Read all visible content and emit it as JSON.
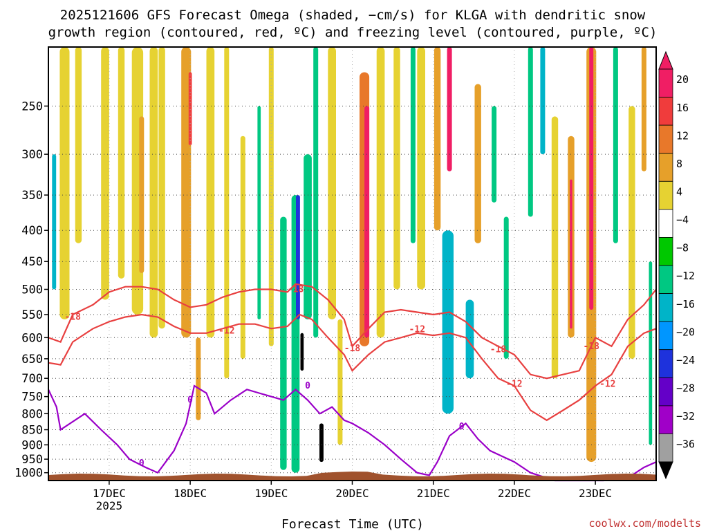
{
  "chart_data": {
    "type": "heatmap",
    "title_line1": "2025121606 GFS Forecast Omega (shaded, −cm/s) for KLGA with dendritic snow",
    "title_line2": "growth region (contoured, red, ºC) and freezing level (contoured, purple, ºC)",
    "xlabel": "Forecast Time (UTC)",
    "credit": "coolwx.com/modelts",
    "x_range": [
      16.25,
      23.75
    ],
    "x_ticks": [
      {
        "value": 17,
        "label": "17DEC",
        "sublabel": "2025"
      },
      {
        "value": 18,
        "label": "18DEC",
        "sublabel": ""
      },
      {
        "value": 19,
        "label": "19DEC",
        "sublabel": ""
      },
      {
        "value": 20,
        "label": "20DEC",
        "sublabel": ""
      },
      {
        "value": 21,
        "label": "21DEC",
        "sublabel": ""
      },
      {
        "value": 22,
        "label": "22DEC",
        "sublabel": ""
      },
      {
        "value": 23,
        "label": "23DEC",
        "sublabel": ""
      }
    ],
    "y_range": [
      1030,
      200
    ],
    "y_ticks": [
      1000,
      950,
      900,
      850,
      800,
      750,
      700,
      650,
      600,
      550,
      500,
      450,
      400,
      350,
      300,
      250
    ],
    "colorbar": {
      "labels": [
        "20",
        "16",
        "12",
        "8",
        "4",
        "−4",
        "−8",
        "−12",
        "−16",
        "−20",
        "−24",
        "−28",
        "−32",
        "−36"
      ],
      "colors": [
        "#f01e64",
        "#f03c3c",
        "#e8782a",
        "#e6a02a",
        "#e6d232",
        "#ffffff",
        "#00c800",
        "#00c882",
        "#00b4c8",
        "#0096ff",
        "#1e32dc",
        "#6400c8",
        "#a000c8",
        "#a0a0a0"
      ],
      "top_color": "#f01e64",
      "bottom_color": "#000000"
    },
    "shading_blobs": [
      {
        "t": 16.32,
        "dt": 0.05,
        "p0": 300,
        "p1": 500,
        "level": -12
      },
      {
        "t": 16.45,
        "dt": 0.12,
        "p0": 200,
        "p1": 560,
        "level": 6
      },
      {
        "t": 16.62,
        "dt": 0.08,
        "p0": 200,
        "p1": 420,
        "level": 4
      },
      {
        "t": 16.95,
        "dt": 0.1,
        "p0": 200,
        "p1": 520,
        "level": 5
      },
      {
        "t": 17.15,
        "dt": 0.08,
        "p0": 200,
        "p1": 480,
        "level": 4
      },
      {
        "t": 17.35,
        "dt": 0.14,
        "p0": 200,
        "p1": 550,
        "level": 6
      },
      {
        "t": 17.4,
        "dt": 0.06,
        "p0": 260,
        "p1": 470,
        "level": 11
      },
      {
        "t": 17.55,
        "dt": 0.1,
        "p0": 200,
        "p1": 600,
        "level": 7
      },
      {
        "t": 17.65,
        "dt": 0.08,
        "p0": 200,
        "p1": 580,
        "level": 5
      },
      {
        "t": 17.95,
        "dt": 0.12,
        "p0": 200,
        "p1": 600,
        "level": 9
      },
      {
        "t": 18.0,
        "dt": 0.04,
        "p0": 220,
        "p1": 290,
        "level": 17
      },
      {
        "t": 18.1,
        "dt": 0.06,
        "p0": 600,
        "p1": 820,
        "level": 8
      },
      {
        "t": 18.25,
        "dt": 0.1,
        "p0": 200,
        "p1": 600,
        "level": 4
      },
      {
        "t": 18.45,
        "dt": 0.06,
        "p0": 200,
        "p1": 700,
        "level": 5
      },
      {
        "t": 18.65,
        "dt": 0.06,
        "p0": 280,
        "p1": 650,
        "level": 5
      },
      {
        "t": 18.85,
        "dt": 0.04,
        "p0": 250,
        "p1": 560,
        "level": -8
      },
      {
        "t": 19.0,
        "dt": 0.06,
        "p0": 200,
        "p1": 620,
        "level": 5
      },
      {
        "t": 19.15,
        "dt": 0.08,
        "p0": 380,
        "p1": 990,
        "level": -8
      },
      {
        "t": 19.3,
        "dt": 0.1,
        "p0": 350,
        "p1": 1000,
        "level": -10
      },
      {
        "t": 19.33,
        "dt": 0.05,
        "p0": 350,
        "p1": 560,
        "level": -22
      },
      {
        "t": 19.38,
        "dt": 0.04,
        "p0": 590,
        "p1": 680,
        "level": -40
      },
      {
        "t": 19.45,
        "dt": 0.1,
        "p0": 300,
        "p1": 560,
        "level": -10
      },
      {
        "t": 19.55,
        "dt": 0.06,
        "p0": 200,
        "p1": 600,
        "level": -8
      },
      {
        "t": 19.62,
        "dt": 0.05,
        "p0": 830,
        "p1": 960,
        "level": -40
      },
      {
        "t": 19.75,
        "dt": 0.1,
        "p0": 200,
        "p1": 560,
        "level": 6
      },
      {
        "t": 19.85,
        "dt": 0.06,
        "p0": 560,
        "p1": 900,
        "level": 5
      },
      {
        "t": 20.15,
        "dt": 0.12,
        "p0": 220,
        "p1": 620,
        "level": 12
      },
      {
        "t": 20.18,
        "dt": 0.06,
        "p0": 250,
        "p1": 600,
        "level": 21
      },
      {
        "t": 20.35,
        "dt": 0.1,
        "p0": 200,
        "p1": 600,
        "level": 5
      },
      {
        "t": 20.55,
        "dt": 0.08,
        "p0": 200,
        "p1": 500,
        "level": 5
      },
      {
        "t": 20.75,
        "dt": 0.06,
        "p0": 200,
        "p1": 420,
        "level": -8
      },
      {
        "t": 20.85,
        "dt": 0.1,
        "p0": 200,
        "p1": 500,
        "level": 6
      },
      {
        "t": 21.05,
        "dt": 0.08,
        "p0": 200,
        "p1": 400,
        "level": 9
      },
      {
        "t": 21.18,
        "dt": 0.14,
        "p0": 400,
        "p1": 800,
        "level": -12
      },
      {
        "t": 21.2,
        "dt": 0.06,
        "p0": 200,
        "p1": 320,
        "level": 22
      },
      {
        "t": 21.45,
        "dt": 0.1,
        "p0": 520,
        "p1": 700,
        "level": -12
      },
      {
        "t": 21.55,
        "dt": 0.08,
        "p0": 230,
        "p1": 420,
        "level": 9
      },
      {
        "t": 21.75,
        "dt": 0.06,
        "p0": 250,
        "p1": 360,
        "level": -8
      },
      {
        "t": 21.9,
        "dt": 0.06,
        "p0": 380,
        "p1": 650,
        "level": -8
      },
      {
        "t": 22.2,
        "dt": 0.06,
        "p0": 200,
        "p1": 380,
        "level": -8
      },
      {
        "t": 22.35,
        "dt": 0.06,
        "p0": 200,
        "p1": 300,
        "level": -12
      },
      {
        "t": 22.5,
        "dt": 0.08,
        "p0": 260,
        "p1": 700,
        "level": 5
      },
      {
        "t": 22.7,
        "dt": 0.08,
        "p0": 280,
        "p1": 600,
        "level": 10
      },
      {
        "t": 22.7,
        "dt": 0.03,
        "p0": 330,
        "p1": 580,
        "level": 21
      },
      {
        "t": 22.95,
        "dt": 0.12,
        "p0": 200,
        "p1": 960,
        "level": 10
      },
      {
        "t": 22.95,
        "dt": 0.05,
        "p0": 200,
        "p1": 540,
        "level": 21
      },
      {
        "t": 23.25,
        "dt": 0.06,
        "p0": 200,
        "p1": 420,
        "level": -8
      },
      {
        "t": 23.45,
        "dt": 0.08,
        "p0": 250,
        "p1": 650,
        "level": 5
      },
      {
        "t": 23.6,
        "dt": 0.06,
        "p0": 200,
        "p1": 320,
        "level": 9
      },
      {
        "t": 23.68,
        "dt": 0.04,
        "p0": 450,
        "p1": 900,
        "level": -8
      }
    ],
    "contours": [
      {
        "name": "-18",
        "color": "#e84040",
        "label_at": [
          [
            16.55,
            555
          ],
          [
            19.3,
            500
          ],
          [
            20.0,
            625
          ],
          [
            21.8,
            628
          ],
          [
            22.95,
            620
          ]
        ],
        "t": [
          16.25,
          16.4,
          16.55,
          16.8,
          17.0,
          17.2,
          17.4,
          17.6,
          17.8,
          18.0,
          18.2,
          18.4,
          18.6,
          18.8,
          19.0,
          19.2,
          19.3,
          19.5,
          19.7,
          19.9,
          20.0,
          20.2,
          20.4,
          20.6,
          20.8,
          21.0,
          21.2,
          21.4,
          21.6,
          21.8,
          22.0,
          22.2,
          22.4,
          22.6,
          22.8,
          23.0,
          23.2,
          23.4,
          23.6,
          23.75
        ],
        "p": [
          600,
          610,
          550,
          530,
          505,
          495,
          495,
          500,
          520,
          535,
          530,
          515,
          505,
          500,
          500,
          505,
          490,
          495,
          520,
          560,
          620,
          580,
          545,
          540,
          545,
          550,
          545,
          565,
          600,
          620,
          640,
          690,
          700,
          690,
          680,
          600,
          620,
          560,
          530,
          500
        ]
      },
      {
        "name": "-12",
        "color": "#e84040",
        "label_at": [
          [
            18.45,
            585
          ],
          [
            20.8,
            582
          ],
          [
            22.0,
            715
          ],
          [
            23.15,
            715
          ]
        ],
        "t": [
          16.25,
          16.4,
          16.55,
          16.8,
          17.0,
          17.2,
          17.4,
          17.6,
          17.8,
          18.0,
          18.2,
          18.4,
          18.6,
          18.8,
          19.0,
          19.2,
          19.35,
          19.5,
          19.7,
          19.9,
          20.0,
          20.2,
          20.4,
          20.6,
          20.8,
          21.0,
          21.2,
          21.4,
          21.6,
          21.8,
          22.0,
          22.2,
          22.4,
          22.6,
          22.8,
          23.0,
          23.2,
          23.4,
          23.6,
          23.75
        ],
        "p": [
          660,
          665,
          610,
          580,
          565,
          555,
          550,
          555,
          575,
          590,
          590,
          580,
          570,
          570,
          580,
          575,
          550,
          560,
          600,
          640,
          680,
          640,
          610,
          600,
          590,
          595,
          590,
          600,
          650,
          700,
          720,
          790,
          820,
          790,
          760,
          720,
          690,
          620,
          590,
          580
        ]
      },
      {
        "name": "0",
        "color": "#9a00c8",
        "label_at": [
          [
            17.4,
            965
          ],
          [
            18.0,
            760
          ],
          [
            19.45,
            720
          ],
          [
            21.35,
            840
          ]
        ],
        "t": [
          16.25,
          16.35,
          16.4,
          16.7,
          16.9,
          17.1,
          17.25,
          17.45,
          17.6,
          17.8,
          17.95,
          18.05,
          18.2,
          18.3,
          18.5,
          18.7,
          18.85,
          19.0,
          19.15,
          19.3,
          19.45,
          19.6,
          19.75,
          19.9,
          20.0,
          20.2,
          20.4,
          20.6,
          20.8,
          20.95,
          21.05,
          21.2,
          21.4,
          21.55,
          21.7,
          21.85,
          22.0,
          22.2,
          22.5,
          22.8,
          23.1,
          23.4,
          23.6,
          23.75
        ],
        "p": [
          730,
          780,
          850,
          800,
          850,
          900,
          950,
          980,
          1000,
          920,
          830,
          720,
          740,
          800,
          760,
          730,
          740,
          750,
          760,
          730,
          760,
          800,
          780,
          820,
          830,
          860,
          900,
          950,
          1000,
          1010,
          960,
          870,
          830,
          880,
          920,
          940,
          960,
          1000,
          1040,
          1040,
          1040,
          1020,
          980,
          960
        ]
      }
    ]
  }
}
